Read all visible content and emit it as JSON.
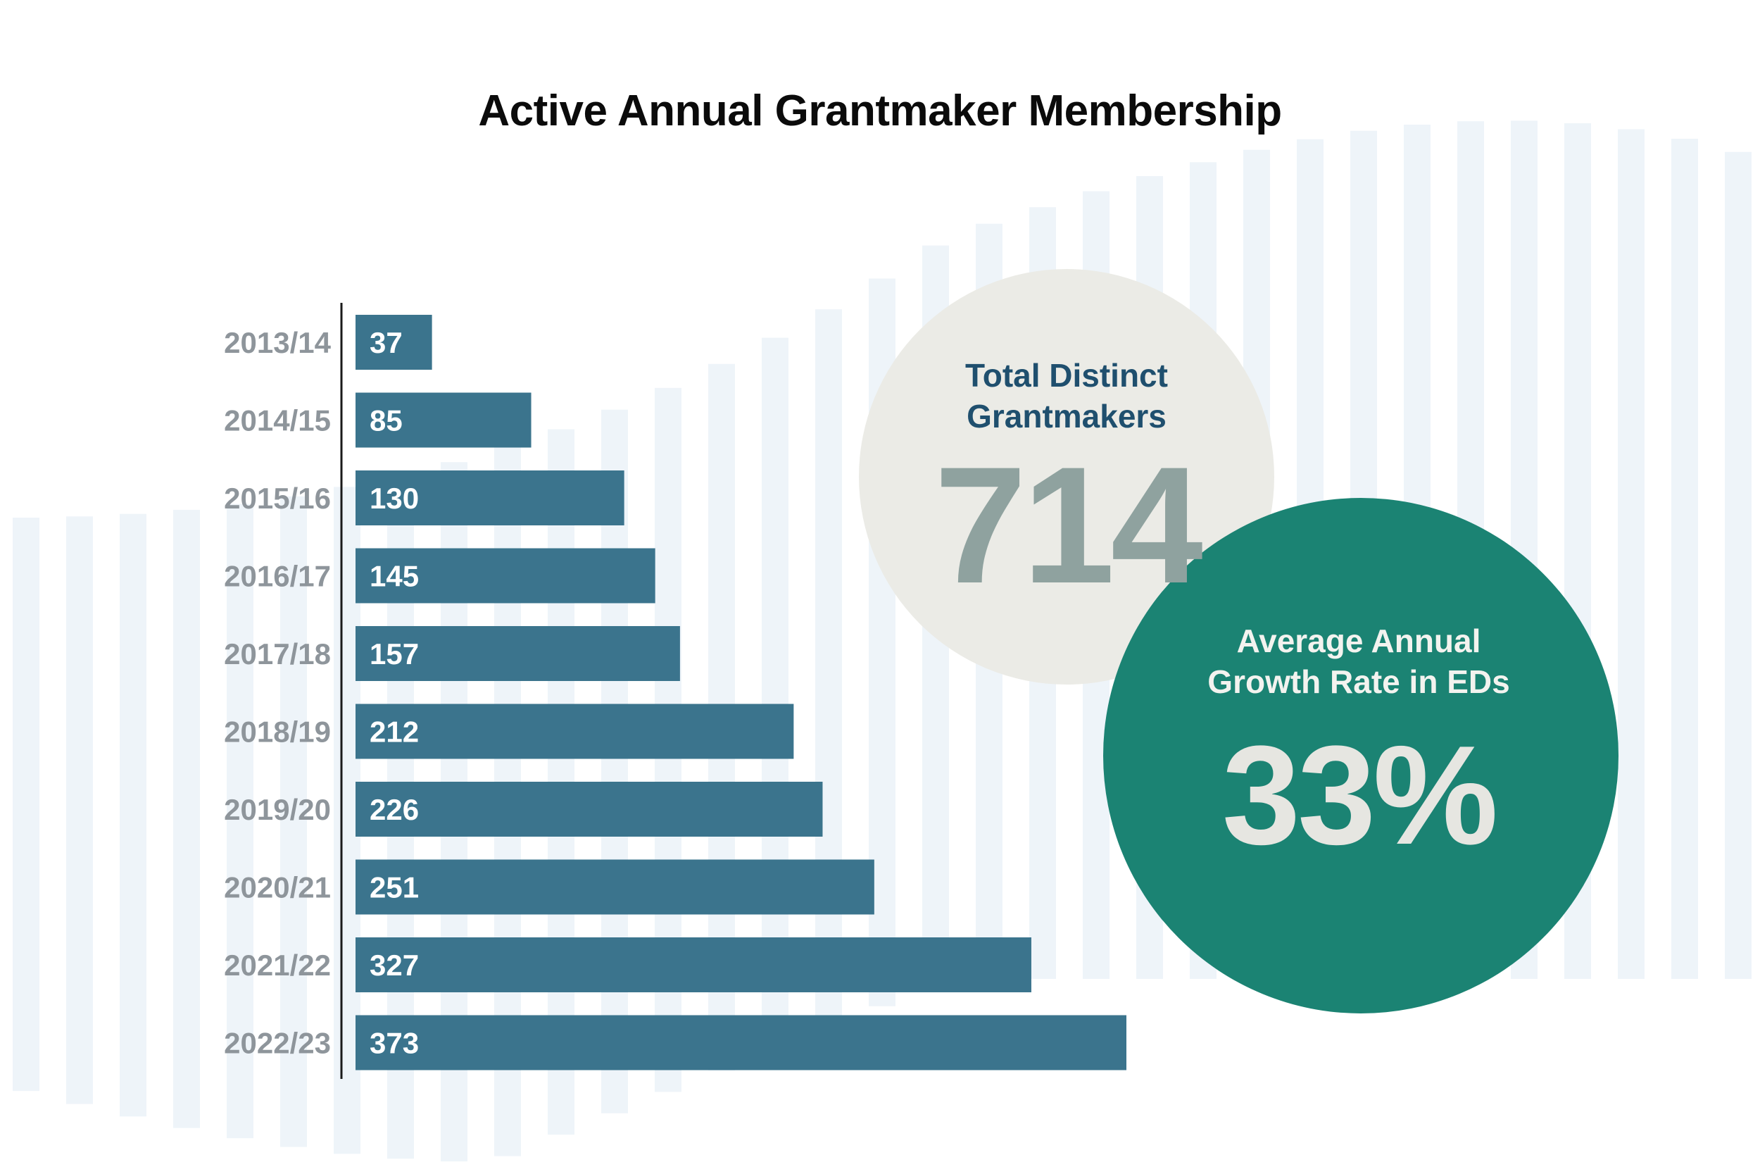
{
  "colors": {
    "bar": "#3b748d",
    "bar_label": "#ffffff",
    "year_label": "#8e959b",
    "axis": "#1a1a1a",
    "background_stripes": "#eef4f9",
    "total_bubble": "#ebebe6",
    "total_label": "#1f4f6e",
    "total_value": "#8fa29f",
    "growth_bubble": "#1b8373",
    "growth_label": "#f3f3ef",
    "growth_value": "#e6e6e1"
  },
  "chart_data": {
    "type": "bar",
    "orientation": "horizontal",
    "title": "Active Annual Grantmaker Membership",
    "categories": [
      "2013/14",
      "2014/15",
      "2015/16",
      "2016/17",
      "2017/18",
      "2018/19",
      "2019/20",
      "2020/21",
      "2021/22",
      "2022/23"
    ],
    "values": [
      37,
      85,
      130,
      145,
      157,
      212,
      226,
      251,
      327,
      373
    ],
    "data_labels": [
      "37",
      "85",
      "130",
      "145",
      "157",
      "212",
      "226",
      "251",
      "327",
      "373"
    ],
    "xlim": [
      0,
      373
    ],
    "grid": false,
    "legend": "none"
  },
  "stats": {
    "total": {
      "label_line1": "Total Distinct",
      "label_line2": "Grantmakers",
      "value": "714"
    },
    "growth": {
      "label_line1": "Average Annual",
      "label_line2": "Growth Rate in EDs",
      "value": "33%"
    }
  }
}
